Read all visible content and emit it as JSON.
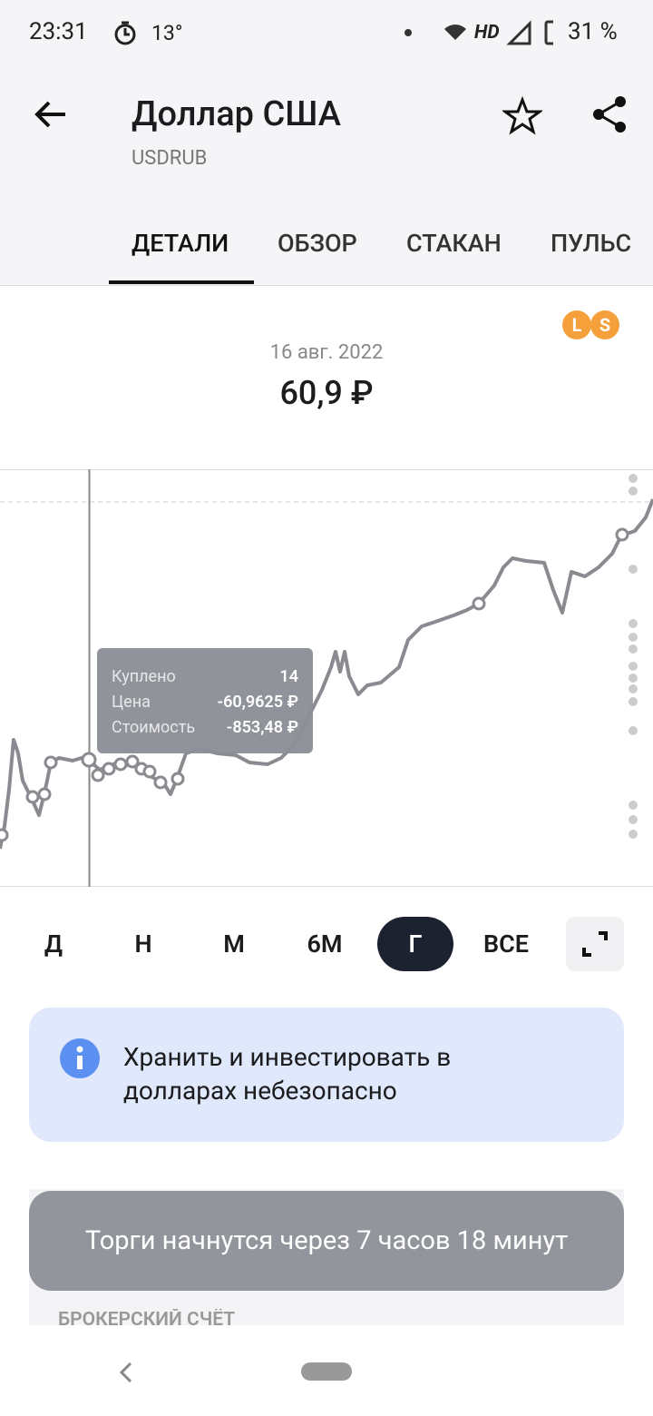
{
  "status_bar": {
    "time": "23:31",
    "temperature": "13°",
    "network": "HD",
    "battery": "31 %"
  },
  "header": {
    "title": "Доллар США",
    "ticker": "USDRUB"
  },
  "tabs": [
    "ДЕТАЛИ",
    "ОБЗОР",
    "СТАКАН",
    "ПУЛЬС"
  ],
  "badges": [
    "L",
    "S"
  ],
  "price": {
    "date": "16 авг. 2022",
    "value": "60,9 ₽"
  },
  "tooltip": {
    "rows": [
      [
        "Куплено",
        "14"
      ],
      [
        "Цена",
        "-60,9625 ₽"
      ],
      [
        "Стоимость",
        "-853,48 ₽"
      ]
    ]
  },
  "periods": [
    "Д",
    "Н",
    "М",
    "6М",
    "Г",
    "ВСЕ"
  ],
  "info": {
    "text": "Хранить и инвестировать в долларах небезопасно"
  },
  "toast": {
    "text": "Торги начнутся через 7 часов 18 минут"
  },
  "section": {
    "title": "БРОКЕРСКИЙ СЧЁТ"
  }
}
